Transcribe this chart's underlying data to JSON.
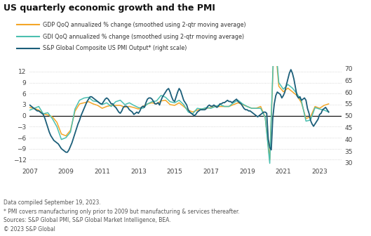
{
  "title": "US quarterly economic growth and the PMI",
  "legend_entries": [
    "GDP QoQ annualized % change (smoothed using 2-qtr moving average)",
    "GDI QoQ annualized % change (smoothed using 2-qtr moving average)",
    "S&P Global Composite US PMI Output* (right scale)"
  ],
  "legend_colors": [
    "#F4A628",
    "#4BBFB0",
    "#1B5E79"
  ],
  "footnotes": [
    "Data compiled September 19, 2023.",
    "* PMI covers manufacturing only prior to 2009 but manufacturing & services thereafter.",
    "Sources: S&P Global PMI, S&P Global Market Intelligence, BEA.",
    "© 2023 S&P Global"
  ],
  "xlim": [
    2007.0,
    2024.2
  ],
  "ylim_left": [
    -13.5,
    13.5
  ],
  "ylim_right": [
    29,
    71
  ],
  "yticks_left": [
    -12,
    -9,
    -6,
    -3,
    0,
    3,
    6,
    9,
    12
  ],
  "yticks_right": [
    30,
    35,
    40,
    45,
    50,
    55,
    60,
    65,
    70
  ],
  "xticks": [
    2007,
    2009,
    2011,
    2013,
    2015,
    2017,
    2019,
    2021,
    2023
  ],
  "background_color": "#FFFFFF",
  "grid_color": "#CCCCCC",
  "zero_line_color": "#000000",
  "gdp": {
    "x": [
      2007.0,
      2007.25,
      2007.5,
      2007.75,
      2008.0,
      2008.25,
      2008.5,
      2008.75,
      2009.0,
      2009.25,
      2009.5,
      2009.75,
      2010.0,
      2010.25,
      2010.5,
      2010.75,
      2011.0,
      2011.25,
      2011.5,
      2011.75,
      2012.0,
      2012.25,
      2012.5,
      2012.75,
      2013.0,
      2013.25,
      2013.5,
      2013.75,
      2014.0,
      2014.25,
      2014.5,
      2014.75,
      2015.0,
      2015.25,
      2015.5,
      2015.75,
      2016.0,
      2016.25,
      2016.5,
      2016.75,
      2017.0,
      2017.25,
      2017.5,
      2017.75,
      2018.0,
      2018.25,
      2018.5,
      2018.75,
      2019.0,
      2019.25,
      2019.5,
      2019.75,
      2020.0,
      2020.25,
      2020.5,
      2020.75,
      2021.0,
      2021.25,
      2021.5,
      2021.75,
      2022.0,
      2022.25,
      2022.5,
      2022.75,
      2023.0,
      2023.25,
      2023.5
    ],
    "y": [
      2.2,
      2.0,
      1.5,
      0.5,
      0.2,
      -0.3,
      -1.8,
      -5.0,
      -5.5,
      -4.0,
      1.2,
      3.2,
      3.5,
      3.8,
      3.2,
      2.8,
      2.0,
      2.5,
      2.8,
      2.8,
      2.8,
      2.3,
      2.5,
      2.2,
      1.8,
      2.5,
      3.2,
      3.5,
      3.2,
      4.0,
      4.2,
      3.0,
      2.8,
      3.5,
      2.5,
      1.5,
      1.0,
      1.5,
      1.8,
      2.0,
      2.2,
      2.5,
      2.5,
      2.5,
      2.5,
      3.0,
      3.5,
      3.0,
      2.5,
      2.0,
      2.0,
      2.5,
      -0.5,
      -12.0,
      22.0,
      8.0,
      6.5,
      7.5,
      6.5,
      5.5,
      3.5,
      -0.8,
      -0.3,
      2.5,
      2.0,
      2.8,
      3.2
    ]
  },
  "gdi": {
    "x": [
      2007.0,
      2007.25,
      2007.5,
      2007.75,
      2008.0,
      2008.25,
      2008.5,
      2008.75,
      2009.0,
      2009.25,
      2009.5,
      2009.75,
      2010.0,
      2010.25,
      2010.5,
      2010.75,
      2011.0,
      2011.25,
      2011.5,
      2011.75,
      2012.0,
      2012.25,
      2012.5,
      2012.75,
      2013.0,
      2013.25,
      2013.5,
      2013.75,
      2014.0,
      2014.25,
      2014.5,
      2014.75,
      2015.0,
      2015.25,
      2015.5,
      2015.75,
      2016.0,
      2016.25,
      2016.5,
      2016.75,
      2017.0,
      2017.25,
      2017.5,
      2017.75,
      2018.0,
      2018.25,
      2018.5,
      2018.75,
      2019.0,
      2019.25,
      2019.5,
      2019.75,
      2020.0,
      2020.25,
      2020.5,
      2020.75,
      2021.0,
      2021.25,
      2021.5,
      2021.75,
      2022.0,
      2022.25,
      2022.5,
      2022.75,
      2023.0,
      2023.25,
      2023.5
    ],
    "y": [
      1.5,
      2.0,
      2.5,
      0.5,
      0.8,
      -0.8,
      -3.0,
      -6.5,
      -6.0,
      -4.5,
      1.8,
      4.2,
      4.8,
      5.0,
      4.0,
      3.8,
      3.0,
      3.5,
      2.5,
      3.8,
      4.2,
      3.0,
      3.5,
      2.8,
      2.2,
      2.0,
      3.2,
      3.8,
      4.0,
      5.5,
      5.0,
      3.8,
      3.5,
      4.2,
      3.0,
      1.0,
      0.5,
      2.0,
      1.8,
      2.2,
      2.0,
      2.5,
      3.0,
      2.5,
      2.5,
      3.5,
      4.2,
      3.2,
      2.5,
      2.0,
      2.0,
      2.0,
      -0.5,
      -13.0,
      24.0,
      9.0,
      7.2,
      8.5,
      7.5,
      6.0,
      4.0,
      -1.5,
      -1.2,
      2.2,
      1.8,
      1.5,
      1.0
    ]
  },
  "pmi": {
    "x": [
      2007.0,
      2007.083,
      2007.167,
      2007.25,
      2007.333,
      2007.417,
      2007.5,
      2007.583,
      2007.667,
      2007.75,
      2007.833,
      2007.917,
      2008.0,
      2008.083,
      2008.167,
      2008.25,
      2008.333,
      2008.417,
      2008.5,
      2008.583,
      2008.667,
      2008.75,
      2008.833,
      2008.917,
      2009.0,
      2009.083,
      2009.167,
      2009.25,
      2009.333,
      2009.417,
      2009.5,
      2009.583,
      2009.667,
      2009.75,
      2009.833,
      2009.917,
      2010.0,
      2010.083,
      2010.167,
      2010.25,
      2010.333,
      2010.417,
      2010.5,
      2010.583,
      2010.667,
      2010.75,
      2010.833,
      2010.917,
      2011.0,
      2011.083,
      2011.167,
      2011.25,
      2011.333,
      2011.417,
      2011.5,
      2011.583,
      2011.667,
      2011.75,
      2011.833,
      2011.917,
      2012.0,
      2012.083,
      2012.167,
      2012.25,
      2012.333,
      2012.417,
      2012.5,
      2012.583,
      2012.667,
      2012.75,
      2012.833,
      2012.917,
      2013.0,
      2013.083,
      2013.167,
      2013.25,
      2013.333,
      2013.417,
      2013.5,
      2013.583,
      2013.667,
      2013.75,
      2013.833,
      2013.917,
      2014.0,
      2014.083,
      2014.167,
      2014.25,
      2014.333,
      2014.417,
      2014.5,
      2014.583,
      2014.667,
      2014.75,
      2014.833,
      2014.917,
      2015.0,
      2015.083,
      2015.167,
      2015.25,
      2015.333,
      2015.417,
      2015.5,
      2015.583,
      2015.667,
      2015.75,
      2015.833,
      2015.917,
      2016.0,
      2016.083,
      2016.167,
      2016.25,
      2016.333,
      2016.417,
      2016.5,
      2016.583,
      2016.667,
      2016.75,
      2016.833,
      2016.917,
      2017.0,
      2017.083,
      2017.167,
      2017.25,
      2017.333,
      2017.417,
      2017.5,
      2017.583,
      2017.667,
      2017.75,
      2017.833,
      2017.917,
      2018.0,
      2018.083,
      2018.167,
      2018.25,
      2018.333,
      2018.417,
      2018.5,
      2018.583,
      2018.667,
      2018.75,
      2018.833,
      2018.917,
      2019.0,
      2019.083,
      2019.167,
      2019.25,
      2019.333,
      2019.417,
      2019.5,
      2019.583,
      2019.667,
      2019.75,
      2019.833,
      2019.917,
      2020.0,
      2020.083,
      2020.167,
      2020.25,
      2020.333,
      2020.417,
      2020.5,
      2020.583,
      2020.667,
      2020.75,
      2020.833,
      2020.917,
      2021.0,
      2021.083,
      2021.167,
      2021.25,
      2021.333,
      2021.417,
      2021.5,
      2021.583,
      2021.667,
      2021.75,
      2021.833,
      2021.917,
      2022.0,
      2022.083,
      2022.167,
      2022.25,
      2022.333,
      2022.417,
      2022.5,
      2022.583,
      2022.667,
      2022.75,
      2022.833,
      2022.917,
      2023.0,
      2023.083,
      2023.167,
      2023.25,
      2023.333,
      2023.5
    ],
    "y": [
      54.5,
      54.0,
      53.5,
      53.0,
      52.5,
      52.0,
      52.0,
      51.5,
      51.0,
      50.5,
      49.0,
      47.0,
      45.0,
      43.0,
      41.5,
      40.5,
      39.5,
      39.0,
      38.5,
      38.0,
      37.0,
      36.0,
      35.5,
      35.0,
      34.5,
      34.5,
      35.5,
      37.0,
      38.5,
      40.5,
      42.5,
      44.5,
      46.5,
      48.0,
      50.0,
      51.5,
      53.0,
      54.5,
      56.0,
      57.0,
      58.0,
      58.0,
      57.5,
      57.0,
      56.5,
      56.0,
      55.5,
      55.0,
      55.0,
      56.0,
      57.0,
      57.5,
      57.0,
      56.0,
      55.0,
      55.0,
      54.0,
      53.5,
      52.5,
      51.5,
      51.0,
      52.0,
      53.5,
      54.0,
      54.0,
      53.5,
      52.5,
      52.0,
      51.5,
      50.5,
      51.0,
      51.5,
      51.0,
      52.0,
      53.5,
      54.0,
      53.5,
      55.5,
      57.0,
      57.5,
      57.5,
      57.0,
      56.0,
      55.0,
      55.0,
      55.5,
      54.5,
      56.5,
      58.0,
      59.0,
      60.0,
      61.0,
      61.5,
      60.0,
      58.0,
      56.5,
      56.0,
      58.0,
      60.0,
      61.5,
      60.5,
      58.5,
      56.5,
      55.5,
      54.5,
      52.5,
      51.5,
      51.0,
      50.5,
      50.0,
      50.5,
      51.5,
      52.0,
      52.5,
      52.5,
      52.5,
      52.5,
      53.0,
      54.0,
      54.5,
      54.0,
      54.0,
      54.5,
      54.0,
      53.5,
      54.0,
      55.0,
      55.0,
      55.5,
      55.5,
      56.0,
      56.5,
      56.0,
      56.0,
      55.5,
      56.0,
      56.5,
      57.0,
      56.0,
      55.5,
      55.0,
      54.0,
      53.0,
      52.5,
      52.5,
      52.0,
      52.0,
      51.5,
      51.0,
      50.5,
      50.0,
      49.5,
      50.0,
      50.5,
      51.0,
      51.5,
      51.5,
      51.0,
      40.0,
      36.5,
      35.5,
      49.0,
      55.0,
      58.5,
      60.0,
      59.5,
      59.0,
      57.5,
      58.5,
      60.0,
      63.0,
      65.5,
      68.0,
      69.5,
      68.0,
      65.5,
      62.0,
      58.5,
      57.5,
      58.0,
      56.5,
      57.0,
      57.5,
      56.5,
      53.0,
      51.0,
      48.0,
      46.5,
      45.5,
      46.5,
      47.5,
      48.5,
      50.5,
      51.0,
      52.5,
      53.0,
      53.5,
      51.5
    ]
  }
}
